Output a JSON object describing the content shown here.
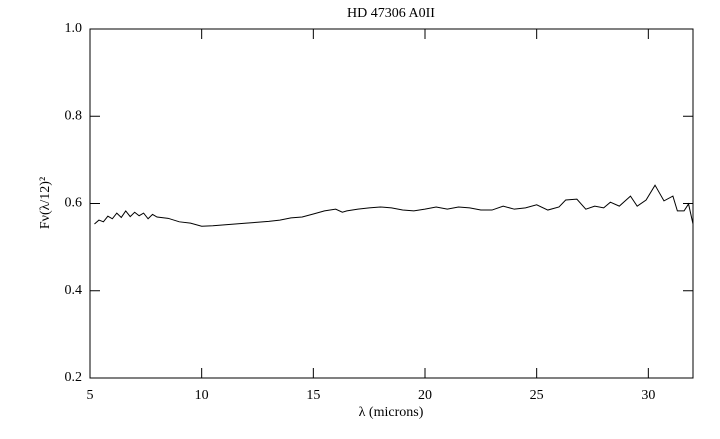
{
  "chart_data": {
    "type": "line",
    "title": "HD 47306 A0II",
    "xlabel": "λ (microns)",
    "ylabel": "Fν(λ/12)²",
    "x": [
      5.2,
      5.4,
      5.6,
      5.8,
      6.0,
      6.2,
      6.4,
      6.6,
      6.8,
      7.0,
      7.2,
      7.4,
      7.6,
      7.8,
      8.0,
      8.5,
      9.0,
      9.5,
      10.0,
      10.5,
      11.0,
      11.5,
      12.0,
      12.5,
      13.0,
      13.5,
      14.0,
      14.5,
      15.0,
      15.5,
      16.0,
      16.3,
      16.5,
      17.0,
      17.5,
      18.0,
      18.5,
      19.0,
      19.5,
      20.0,
      20.5,
      21.0,
      21.5,
      22.0,
      22.5,
      23.0,
      23.5,
      24.0,
      24.5,
      25.0,
      25.5,
      26.0,
      26.3,
      26.8,
      27.2,
      27.6,
      28.0,
      28.3,
      28.7,
      29.2,
      29.5,
      29.9,
      30.3,
      30.7,
      31.1,
      31.3,
      31.6,
      31.8,
      32.0
    ],
    "values": [
      0.553,
      0.562,
      0.558,
      0.571,
      0.565,
      0.578,
      0.568,
      0.583,
      0.57,
      0.58,
      0.572,
      0.578,
      0.565,
      0.575,
      0.569,
      0.566,
      0.558,
      0.555,
      0.548,
      0.549,
      0.551,
      0.553,
      0.555,
      0.557,
      0.559,
      0.562,
      0.567,
      0.569,
      0.576,
      0.583,
      0.587,
      0.58,
      0.583,
      0.587,
      0.59,
      0.592,
      0.59,
      0.585,
      0.583,
      0.587,
      0.592,
      0.587,
      0.592,
      0.59,
      0.585,
      0.585,
      0.594,
      0.587,
      0.59,
      0.597,
      0.585,
      0.592,
      0.608,
      0.61,
      0.587,
      0.594,
      0.59,
      0.603,
      0.594,
      0.617,
      0.594,
      0.608,
      0.642,
      0.606,
      0.617,
      0.583,
      0.583,
      0.599,
      0.553
    ],
    "color": "#000000",
    "xlim": [
      5,
      32
    ],
    "xticks": [
      5,
      10,
      15,
      20,
      25,
      30
    ],
    "ylim": [
      0.2,
      1.0
    ],
    "yticks": [
      0.2,
      0.4,
      0.6,
      0.8,
      {
        "value": 1.0,
        "label": "1.0"
      }
    ],
    "grid": false
  }
}
